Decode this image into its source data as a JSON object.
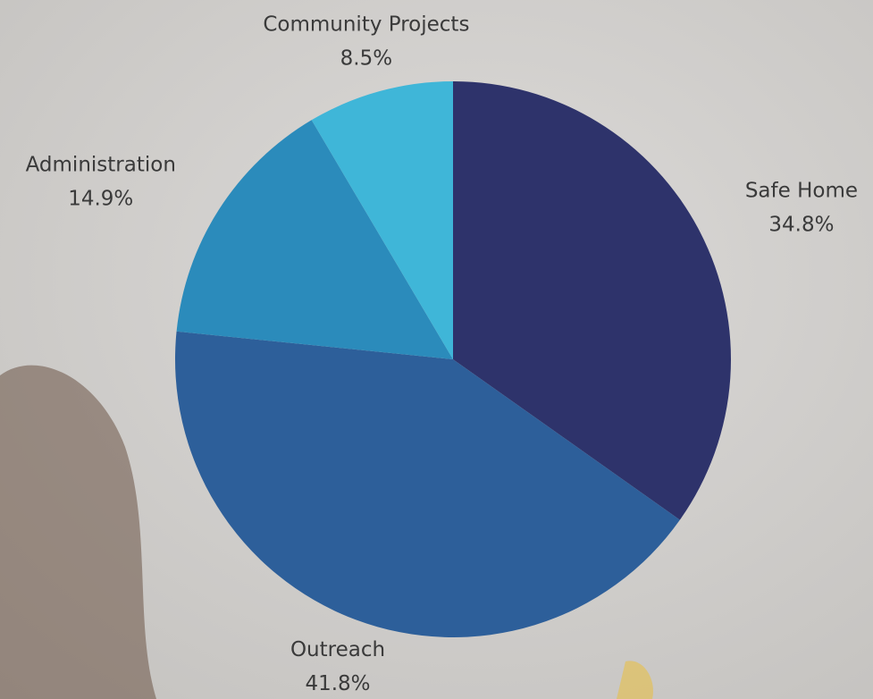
{
  "chart_data": {
    "type": "pie",
    "categories": [
      "Safe Home",
      "Outreach",
      "Administration",
      "Community Projects"
    ],
    "values": [
      34.8,
      41.8,
      14.9,
      8.5
    ],
    "value_labels": [
      "34.8%",
      "41.8%",
      "14.9%",
      "8.5%"
    ],
    "colors": [
      "#2e336b",
      "#2d5f9a",
      "#2b8bbb",
      "#3fb6d8"
    ]
  }
}
